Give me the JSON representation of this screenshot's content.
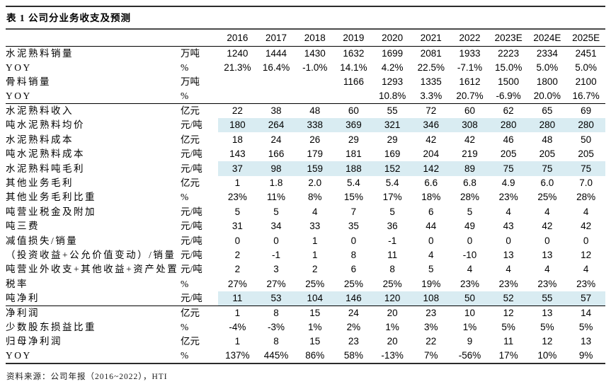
{
  "page": {
    "title": "表 1 公司分业务收支及预测",
    "source": "资料来源：公司年报（2016~2022），HTI"
  },
  "colors": {
    "highlight": "#d9ecf2",
    "rule": "#2b2b2b"
  },
  "table": {
    "columns": [
      "2016",
      "2017",
      "2018",
      "2019",
      "2020",
      "2021",
      "2022",
      "2023E",
      "2024E",
      "2025E"
    ],
    "rows": [
      {
        "label": "水泥熟料销量",
        "unit": "万吨",
        "highlight": false,
        "rule_above": false,
        "values": [
          "1240",
          "1444",
          "1430",
          "1632",
          "1699",
          "2081",
          "1933",
          "2223",
          "2334",
          "2451"
        ]
      },
      {
        "label": "YOY",
        "unit": "%",
        "highlight": false,
        "rule_above": false,
        "values": [
          "21.3%",
          "16.4%",
          "-1.0%",
          "14.1%",
          "4.2%",
          "22.5%",
          "-7.1%",
          "15.0%",
          "5.0%",
          "5.0%"
        ]
      },
      {
        "label": "骨料销量",
        "unit": "万吨",
        "highlight": false,
        "rule_above": false,
        "values": [
          "",
          "",
          "",
          "1166",
          "1293",
          "1335",
          "1612",
          "1500",
          "1800",
          "2100"
        ]
      },
      {
        "label": "YOY",
        "unit": "%",
        "highlight": false,
        "rule_above": false,
        "values": [
          "",
          "",
          "",
          "",
          "10.8%",
          "3.3%",
          "20.7%",
          "-6.9%",
          "20.0%",
          "16.7%"
        ]
      },
      {
        "label": "水泥熟料收入",
        "unit": "亿元",
        "highlight": false,
        "rule_above": true,
        "values": [
          "22",
          "38",
          "48",
          "60",
          "55",
          "72",
          "60",
          "62",
          "65",
          "69"
        ]
      },
      {
        "label": "吨水泥熟料均价",
        "unit": "元/吨",
        "highlight": true,
        "rule_above": false,
        "values": [
          "180",
          "264",
          "338",
          "369",
          "321",
          "346",
          "308",
          "280",
          "280",
          "280"
        ]
      },
      {
        "label": "水泥熟料成本",
        "unit": "亿元",
        "highlight": false,
        "rule_above": false,
        "values": [
          "18",
          "24",
          "26",
          "29",
          "29",
          "42",
          "42",
          "46",
          "48",
          "50"
        ]
      },
      {
        "label": "吨水泥熟料成本",
        "unit": "元/吨",
        "highlight": false,
        "rule_above": false,
        "values": [
          "143",
          "166",
          "179",
          "181",
          "169",
          "204",
          "219",
          "205",
          "205",
          "205"
        ]
      },
      {
        "label": "水泥熟料吨毛利",
        "unit": "元/吨",
        "highlight": true,
        "rule_above": false,
        "values": [
          "37",
          "98",
          "159",
          "188",
          "152",
          "142",
          "89",
          "75",
          "75",
          "75"
        ]
      },
      {
        "label": "其他业务毛利",
        "unit": "亿元",
        "highlight": false,
        "rule_above": false,
        "values": [
          "1",
          "1.8",
          "2.0",
          "5.4",
          "5.4",
          "6.6",
          "6.8",
          "4.9",
          "6.0",
          "7.0"
        ]
      },
      {
        "label": "其他业务毛利比重",
        "unit": "%",
        "highlight": false,
        "rule_above": false,
        "values": [
          "23%",
          "11%",
          "8%",
          "15%",
          "17%",
          "18%",
          "28%",
          "23%",
          "25%",
          "28%"
        ]
      },
      {
        "label": "吨营业税金及附加",
        "unit": "元/吨",
        "highlight": false,
        "rule_above": false,
        "values": [
          "5",
          "5",
          "4",
          "7",
          "5",
          "6",
          "5",
          "4",
          "4",
          "4"
        ]
      },
      {
        "label": "吨三费",
        "unit": "元/吨",
        "highlight": false,
        "rule_above": false,
        "values": [
          "31",
          "34",
          "33",
          "35",
          "36",
          "44",
          "49",
          "43",
          "42",
          "42"
        ]
      },
      {
        "label": "减值损失/销量",
        "unit": "元/吨",
        "highlight": false,
        "rule_above": false,
        "values": [
          "0",
          "0",
          "1",
          "0",
          "-1",
          "0",
          "0",
          "0",
          "0",
          "0"
        ]
      },
      {
        "label": "（投资收益+公允价值变动）/销量",
        "unit": "元/吨",
        "highlight": false,
        "rule_above": false,
        "values": [
          "2",
          "-1",
          "1",
          "8",
          "11",
          "4",
          "-10",
          "13",
          "13",
          "12"
        ]
      },
      {
        "label": "吨营业外收支+其他收益+资产处置",
        "unit": "元/吨",
        "highlight": false,
        "rule_above": false,
        "values": [
          "2",
          "3",
          "2",
          "6",
          "8",
          "5",
          "4",
          "4",
          "4",
          "4"
        ]
      },
      {
        "label": "税率",
        "unit": "%",
        "highlight": false,
        "rule_above": false,
        "values": [
          "27%",
          "27%",
          "25%",
          "25%",
          "25%",
          "19%",
          "23%",
          "23%",
          "23%",
          "23%"
        ]
      },
      {
        "label": "吨净利",
        "unit": "元/吨",
        "highlight": true,
        "rule_above": false,
        "values": [
          "11",
          "53",
          "104",
          "146",
          "120",
          "108",
          "50",
          "52",
          "55",
          "57"
        ]
      },
      {
        "label": "净利润",
        "unit": "亿元",
        "highlight": false,
        "rule_above": true,
        "values": [
          "1",
          "8",
          "15",
          "24",
          "20",
          "23",
          "10",
          "12",
          "13",
          "14"
        ]
      },
      {
        "label": "少数股东损益比重",
        "unit": "%",
        "highlight": false,
        "rule_above": false,
        "values": [
          "-4%",
          "-3%",
          "1%",
          "2%",
          "1%",
          "3%",
          "1%",
          "5%",
          "5%",
          "5%"
        ]
      },
      {
        "label": "归母净利润",
        "unit": "亿元",
        "highlight": false,
        "rule_above": false,
        "values": [
          "1",
          "8",
          "15",
          "23",
          "20",
          "22",
          "9",
          "11",
          "12",
          "13"
        ]
      },
      {
        "label": "YOY",
        "unit": "%",
        "highlight": false,
        "rule_above": false,
        "values": [
          "137%",
          "445%",
          "86%",
          "58%",
          "-13%",
          "7%",
          "-56%",
          "17%",
          "10%",
          "9%"
        ]
      }
    ]
  }
}
